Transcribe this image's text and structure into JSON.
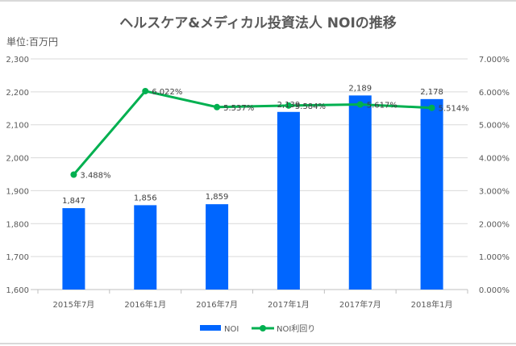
{
  "chart_data": {
    "type": "bar+line",
    "title": "ヘルスケア&メディカル投資法人 NOIの推移",
    "unit_label": "単位:百万円",
    "categories": [
      "2015年7月",
      "2016年1月",
      "2016年7月",
      "2017年1月",
      "2017年7月",
      "2018年1月"
    ],
    "series": [
      {
        "name": "NOI",
        "type": "bar",
        "axis": "left",
        "color": "#0066ff",
        "values": [
          1847,
          1856,
          1859,
          2139,
          2189,
          2178
        ],
        "labels": [
          "1,847",
          "1,856",
          "1,859",
          "2,139",
          "2,189",
          "2,178"
        ]
      },
      {
        "name": "NOI利回り",
        "type": "line",
        "axis": "right",
        "color": "#00b050",
        "values": [
          3.488,
          6.022,
          5.537,
          5.584,
          5.617,
          5.514
        ],
        "labels": [
          "3.488%",
          "6.022%",
          "5.537%",
          "5.584%",
          "5.617%",
          "5.514%"
        ]
      }
    ],
    "y_left": {
      "range": [
        1600,
        2300
      ],
      "ticks": [
        "1,600",
        "1,700",
        "1,800",
        "1,900",
        "2,000",
        "2,100",
        "2,200",
        "2,300"
      ]
    },
    "y_right": {
      "range": [
        0,
        7
      ],
      "ticks": [
        "0.000%",
        "1.000%",
        "2.000%",
        "3.000%",
        "4.000%",
        "5.000%",
        "6.000%",
        "7.000%"
      ]
    },
    "grid": true,
    "legend_position": "bottom"
  }
}
